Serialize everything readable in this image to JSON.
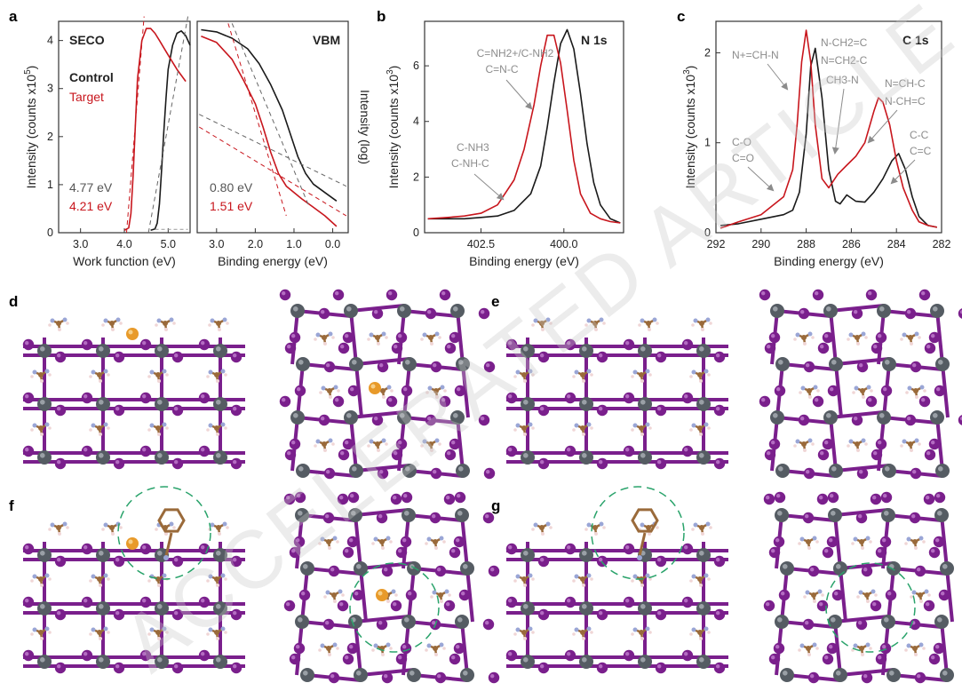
{
  "panel_labels": {
    "a": "a",
    "b": "b",
    "c": "c",
    "d": "d",
    "e": "e",
    "f": "f",
    "g": "g"
  },
  "watermark": "ACCELERATED ARTICLE PREVIEW",
  "colors": {
    "control": "#1a1a1a",
    "target": "#c8161d",
    "dashed_circle": "#2aa36b",
    "iodine": "#7a1f8c",
    "lead": "#555c63",
    "dopant": "#e89a2a",
    "carbon": "#9a6a3a",
    "nitrogen": "#9aa6d6"
  },
  "chart_data": [
    {
      "id": "seco",
      "type": "line",
      "title": "SECO",
      "xlabel": "Work function (eV)",
      "ylabel": "Intensity (counts x10",
      "ylabel_exp": "5",
      "xlim": [
        2.5,
        5.5
      ],
      "ylim": [
        0,
        4.4
      ],
      "xticks": [
        "3.0",
        "4.0",
        "5.0"
      ],
      "xtick_values": [
        3.0,
        4.0,
        5.0
      ],
      "yticks": [
        "0",
        "1",
        "2",
        "3",
        "4"
      ],
      "ytick_values": [
        0,
        1,
        2,
        3,
        4
      ],
      "legend": [
        "Control",
        "Target"
      ],
      "annotations": [
        "4.77 eV",
        "4.21 eV"
      ],
      "series": [
        {
          "name": "Control",
          "x": [
            4.6,
            4.7,
            4.75,
            4.8,
            4.85,
            4.9,
            4.95,
            5.0,
            5.1,
            5.2,
            5.3,
            5.4,
            5.5
          ],
          "y": [
            0.05,
            0.08,
            0.2,
            0.6,
            1.3,
            2.1,
            2.8,
            3.4,
            3.9,
            4.15,
            4.2,
            4.1,
            3.9
          ]
        },
        {
          "name": "Target",
          "x": [
            4.0,
            4.1,
            4.15,
            4.2,
            4.25,
            4.3,
            4.4,
            4.5,
            4.6,
            4.7,
            4.8,
            4.9,
            5.0,
            5.2,
            5.4
          ],
          "y": [
            0.05,
            0.1,
            0.4,
            1.2,
            2.2,
            3.2,
            4.0,
            4.25,
            4.25,
            4.15,
            4.0,
            3.85,
            3.7,
            3.4,
            3.15
          ]
        }
      ]
    },
    {
      "id": "vbm",
      "type": "line",
      "title": "VBM",
      "xlabel": "Binding energy (eV)",
      "ylabel": "Intensity (log)",
      "xlim": [
        3.5,
        -0.4
      ],
      "ylim": [
        0,
        10
      ],
      "xticks": [
        "3.0",
        "2.0",
        "1.0",
        "0.0"
      ],
      "xtick_values": [
        3.0,
        2.0,
        1.0,
        0.0
      ],
      "annotations": [
        "0.80 eV",
        "1.51 eV"
      ],
      "series": [
        {
          "name": "Control",
          "x": [
            3.4,
            3.0,
            2.6,
            2.2,
            1.9,
            1.6,
            1.3,
            1.1,
            0.9,
            0.7,
            0.5,
            0.2,
            -0.1
          ],
          "y": [
            9.6,
            9.5,
            9.2,
            8.7,
            8.0,
            7.0,
            5.8,
            4.7,
            3.6,
            2.8,
            2.3,
            1.9,
            1.5
          ]
        },
        {
          "name": "Target",
          "x": [
            3.4,
            3.0,
            2.6,
            2.3,
            2.0,
            1.8,
            1.6,
            1.4,
            1.2,
            1.0,
            0.8,
            0.5,
            0.2,
            -0.1
          ],
          "y": [
            9.3,
            9.0,
            8.2,
            7.2,
            6.1,
            5.0,
            3.8,
            2.8,
            2.2,
            1.9,
            1.6,
            1.2,
            0.8,
            0.3
          ]
        }
      ]
    },
    {
      "id": "n1s",
      "type": "line",
      "title": "N 1s",
      "xlabel": "Binding energy (eV)",
      "ylabel": "Intensity (counts x10",
      "ylabel_exp": "3",
      "xlim": [
        404.2,
        398.2
      ],
      "ylim": [
        0,
        7.6
      ],
      "xticks": [
        "402.5",
        "400.0"
      ],
      "xtick_values": [
        402.5,
        400.0
      ],
      "yticks": [
        "0",
        "2",
        "4",
        "6"
      ],
      "ytick_values": [
        0,
        2,
        4,
        6
      ],
      "annotations": [
        "C=NH2+/C-NH2",
        "C=N-C",
        "C-NH3",
        "C-NH-C"
      ],
      "series": [
        {
          "name": "Control",
          "x": [
            404.1,
            403.5,
            403.0,
            402.5,
            402.0,
            401.5,
            401.0,
            400.7,
            400.5,
            400.3,
            400.1,
            399.9,
            399.7,
            399.5,
            399.3,
            399.1,
            398.9,
            398.6,
            398.3
          ],
          "y": [
            0.5,
            0.5,
            0.5,
            0.55,
            0.6,
            0.8,
            1.4,
            2.4,
            3.8,
            5.4,
            6.8,
            7.3,
            6.6,
            5.0,
            3.2,
            1.8,
            1.0,
            0.5,
            0.35
          ]
        },
        {
          "name": "Target",
          "x": [
            404.1,
            403.5,
            403.0,
            402.5,
            402.0,
            401.5,
            401.2,
            400.9,
            400.7,
            400.5,
            400.3,
            400.1,
            399.9,
            399.7,
            399.5,
            399.2,
            398.9,
            398.6,
            398.3
          ],
          "y": [
            0.5,
            0.55,
            0.6,
            0.7,
            1.0,
            1.9,
            3.0,
            4.6,
            6.0,
            7.1,
            7.1,
            6.1,
            4.4,
            2.6,
            1.4,
            0.7,
            0.5,
            0.4,
            0.35
          ]
        }
      ]
    },
    {
      "id": "c1s",
      "type": "line",
      "title": "C 1s",
      "xlabel": "Binding energy (eV)",
      "ylabel": "Intensity (counts x10",
      "ylabel_exp": "3",
      "xlim": [
        292,
        282
      ],
      "ylim": [
        0,
        2.35
      ],
      "xticks": [
        "292",
        "290",
        "288",
        "286",
        "284",
        "282"
      ],
      "xtick_values": [
        292,
        290,
        288,
        286,
        284,
        282
      ],
      "yticks": [
        "0",
        "1",
        "2"
      ],
      "ytick_values": [
        0,
        1,
        2
      ],
      "annotations": [
        "N+=CH-N",
        "N-CH2=C",
        "N=CH2-C",
        "CH3-N",
        "N=CH-C",
        "N-CH=C",
        "C-O",
        "C=O",
        "C-C",
        "C=C"
      ],
      "series": [
        {
          "name": "Control",
          "x": [
            291.8,
            291.0,
            290.0,
            289.0,
            288.6,
            288.3,
            288.0,
            287.8,
            287.6,
            287.3,
            287.0,
            286.7,
            286.5,
            286.2,
            285.8,
            285.4,
            285.0,
            284.6,
            284.2,
            283.9,
            283.6,
            283.3,
            283.0,
            282.6,
            282.2
          ],
          "y": [
            0.08,
            0.1,
            0.15,
            0.2,
            0.25,
            0.45,
            1.1,
            1.85,
            2.05,
            1.5,
            0.7,
            0.35,
            0.32,
            0.42,
            0.35,
            0.34,
            0.45,
            0.6,
            0.8,
            0.88,
            0.7,
            0.4,
            0.18,
            0.08,
            0.06
          ]
        },
        {
          "name": "Target",
          "x": [
            291.8,
            291.0,
            290.0,
            289.0,
            288.6,
            288.4,
            288.2,
            288.0,
            287.8,
            287.6,
            287.3,
            287.0,
            286.6,
            286.2,
            285.8,
            285.4,
            285.0,
            284.8,
            284.6,
            284.3,
            284.0,
            283.7,
            283.3,
            283.0,
            282.6,
            282.2
          ],
          "y": [
            0.05,
            0.12,
            0.2,
            0.4,
            0.7,
            1.2,
            1.9,
            2.25,
            1.9,
            1.2,
            0.6,
            0.5,
            0.65,
            0.75,
            0.85,
            1.0,
            1.35,
            1.5,
            1.45,
            1.2,
            0.8,
            0.5,
            0.25,
            0.12,
            0.08,
            0.06
          ]
        }
      ]
    }
  ]
}
